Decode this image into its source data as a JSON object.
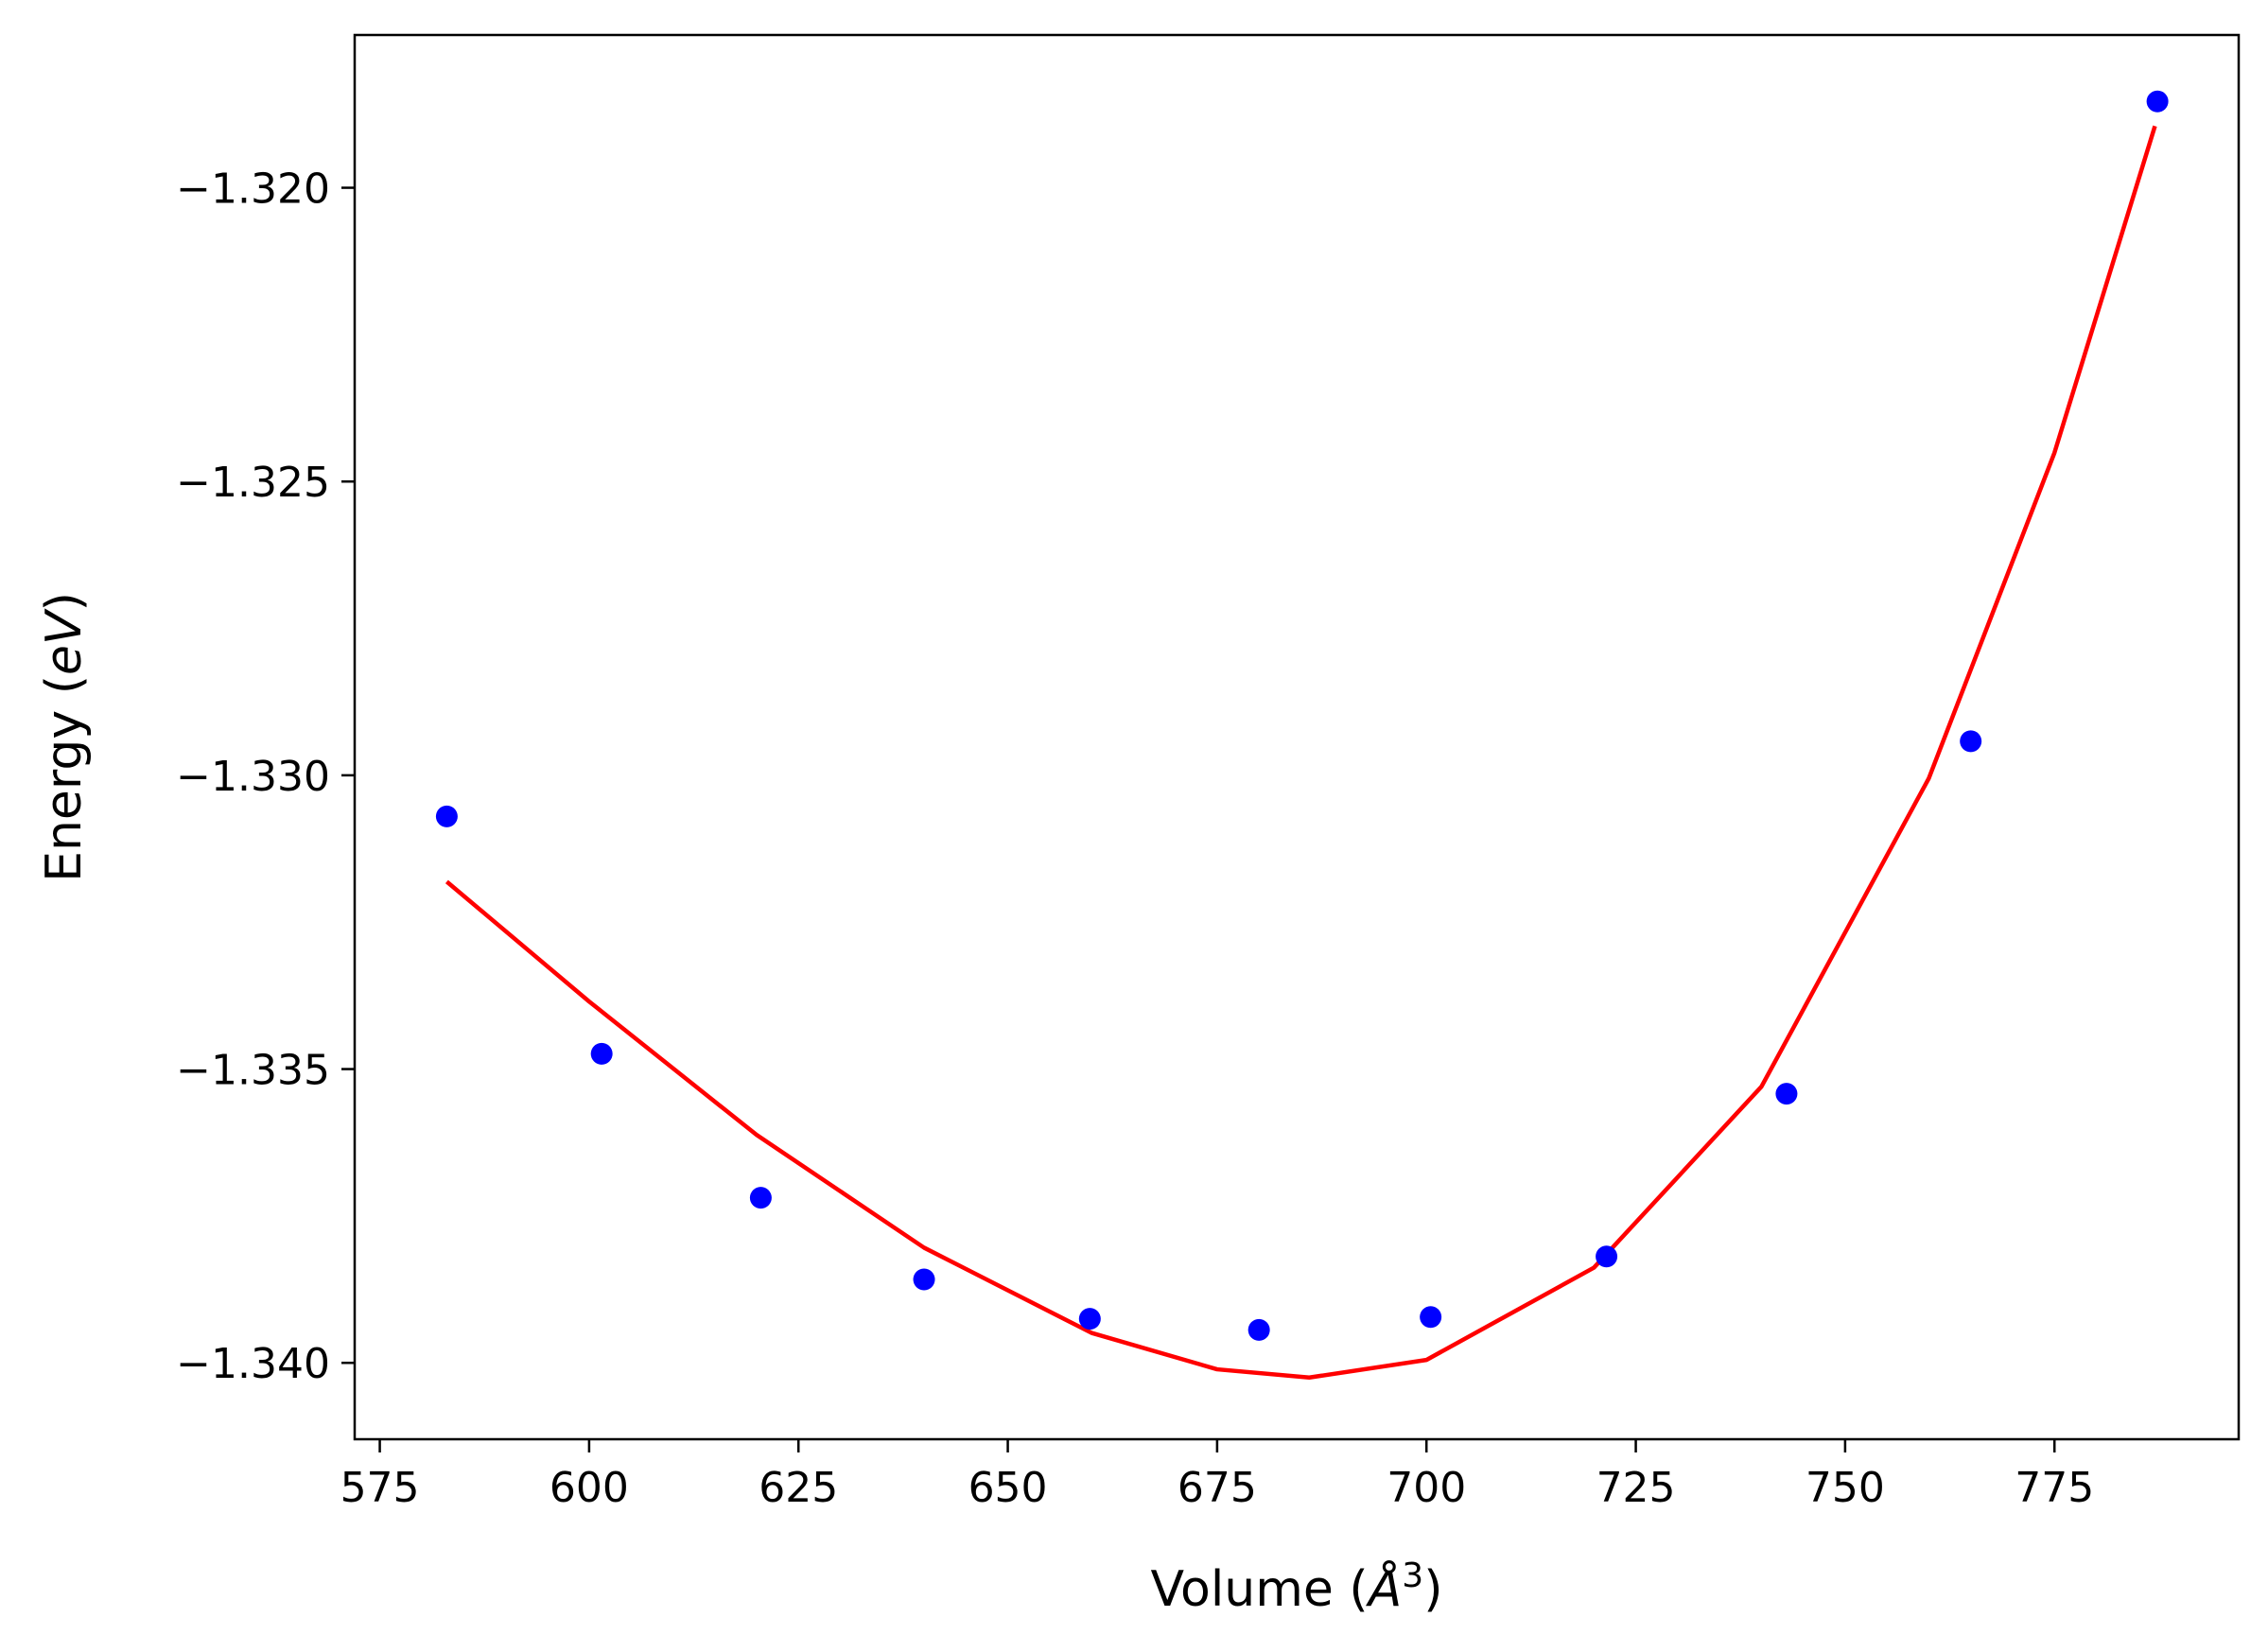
{
  "chart_data": {
    "type": "scatter",
    "xlabel_prefix": "Volume (",
    "xlabel_symbol": "Å",
    "xlabel_superscript": "3",
    "xlabel_suffix": ")",
    "ylabel_prefix": "Energy (",
    "ylabel_symbol": "eV",
    "ylabel_suffix": ")",
    "xlim": [
      572,
      797
    ],
    "ylim": [
      -1.3413,
      -1.3174
    ],
    "x_ticks": [
      575,
      600,
      625,
      650,
      675,
      700,
      725,
      750,
      775
    ],
    "x_tick_labels": [
      "575",
      "600",
      "625",
      "650",
      "675",
      "700",
      "725",
      "750",
      "775"
    ],
    "y_ticks": [
      -1.32,
      -1.325,
      -1.33,
      -1.335,
      -1.34
    ],
    "y_tick_labels": [
      "−1.320",
      "−1.325",
      "−1.330",
      "−1.335",
      "−1.340"
    ],
    "grid": false,
    "series": [
      {
        "kind": "scatter",
        "color": "#0000ff",
        "x": [
          583.0,
          601.5,
          620.5,
          640.0,
          659.8,
          680.0,
          700.5,
          721.5,
          743.0,
          765.0,
          787.3
        ],
        "y": [
          -1.3307,
          -1.33474,
          -1.33719,
          -1.33858,
          -1.33925,
          -1.33944,
          -1.33922,
          -1.33819,
          -1.33542,
          -1.32942,
          -1.31853
        ]
      },
      {
        "kind": "line",
        "color": "#ff0000",
        "x": [
          583,
          600,
          620,
          640,
          660,
          675,
          686,
          700,
          720,
          740,
          760,
          775,
          787
        ],
        "y": [
          -1.33181,
          -1.33385,
          -1.33612,
          -1.33804,
          -1.33949,
          -1.34011,
          -1.34025,
          -1.33995,
          -1.33838,
          -1.3353,
          -1.33005,
          -1.32451,
          -1.31895
        ]
      }
    ]
  }
}
